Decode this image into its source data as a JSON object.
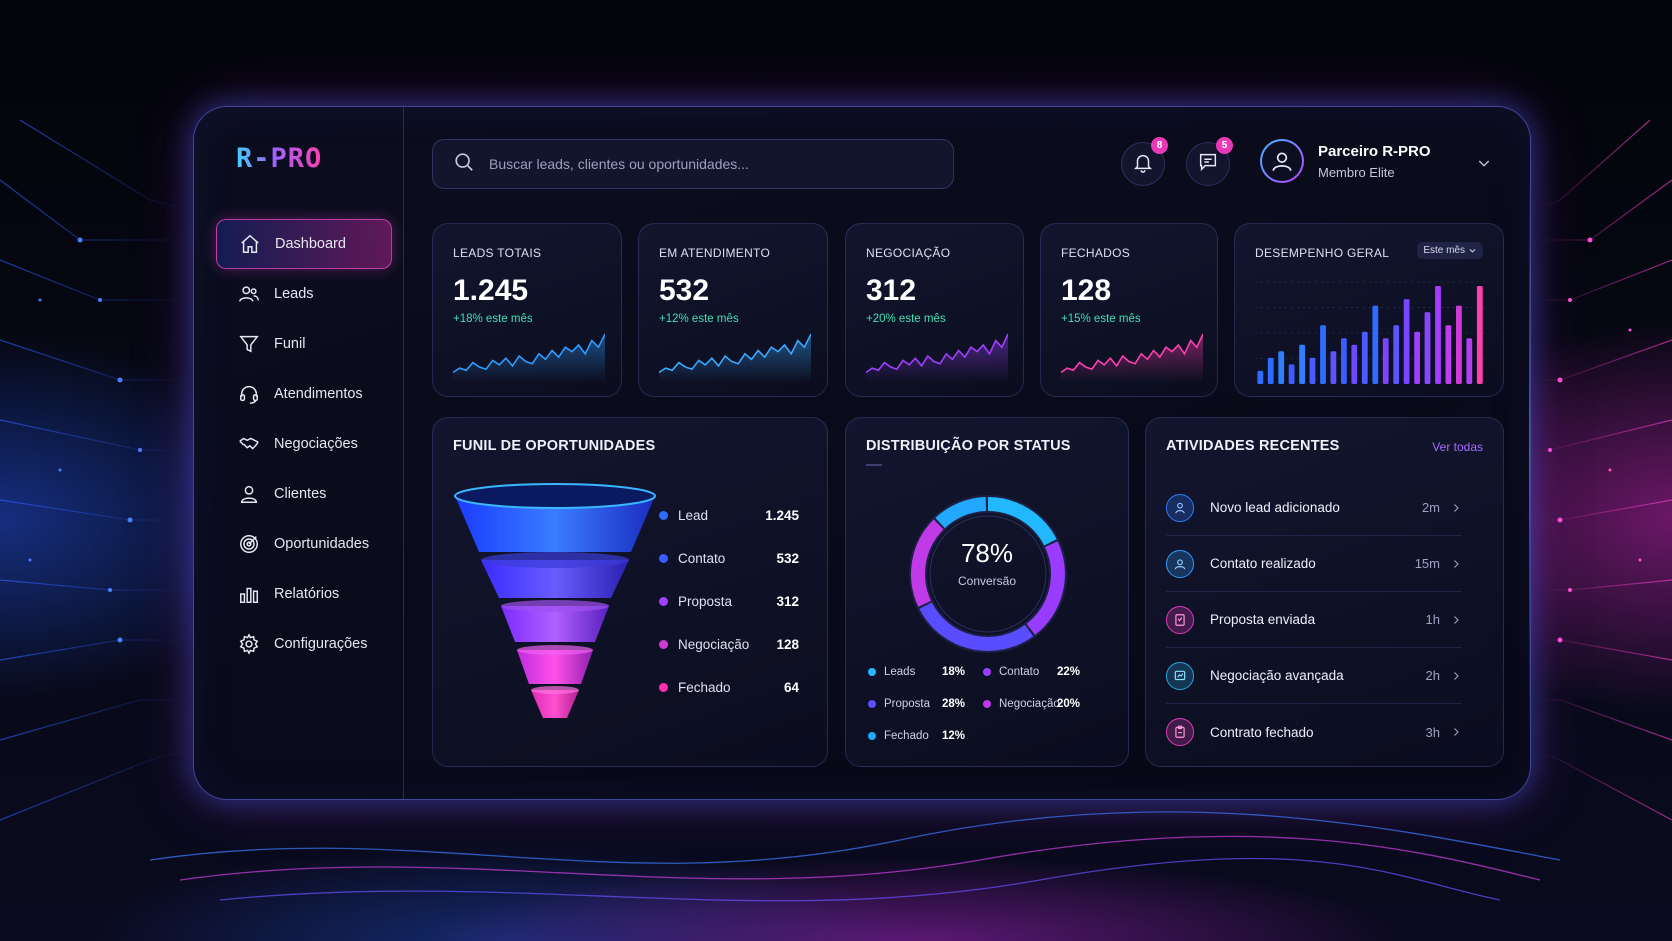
{
  "brand": {
    "logo": "R-PRO"
  },
  "sidebar": {
    "items": [
      {
        "label": "Dashboard",
        "icon": "home-icon",
        "active": true
      },
      {
        "label": "Leads",
        "icon": "users-icon"
      },
      {
        "label": "Funil",
        "icon": "funnel-icon"
      },
      {
        "label": "Atendimentos",
        "icon": "headset-icon"
      },
      {
        "label": "Negociações",
        "icon": "handshake-icon"
      },
      {
        "label": "Clientes",
        "icon": "user-icon"
      },
      {
        "label": "Oportunidades",
        "icon": "target-icon"
      },
      {
        "label": "Relatórios",
        "icon": "bar-chart-icon"
      },
      {
        "label": "Configurações",
        "icon": "gear-icon"
      }
    ]
  },
  "header": {
    "search_placeholder": "Buscar leads, clientes ou oportunidades...",
    "notifications_count": "8",
    "messages_count": "5",
    "user_name": "Parceiro R-PRO",
    "user_role": "Membro Elite"
  },
  "kpis": [
    {
      "label": "LEADS TOTAIS",
      "value": "1.245",
      "delta": "+18% este mês",
      "color": "#2e9cff"
    },
    {
      "label": "EM ATENDIMENTO",
      "value": "532",
      "delta": "+12% este mês",
      "color": "#3aa8ff"
    },
    {
      "label": "NEGOCIAÇÃO",
      "value": "312",
      "delta": "+20% este mês",
      "color": "#a040ff"
    },
    {
      "label": "FECHADOS",
      "value": "128",
      "delta": "+15% este mês",
      "color": "#ff3fb0"
    }
  ],
  "performance": {
    "title": "DESEMPENHO GERAL",
    "period": "Este mês",
    "chart_data": {
      "type": "bar",
      "values": [
        2,
        4,
        5,
        3,
        6,
        4,
        9,
        5,
        7,
        6,
        8,
        12,
        7,
        9,
        13,
        8,
        11,
        15,
        9,
        12,
        7,
        15
      ],
      "colors": [
        "#2e6cff",
        "#2e6cff",
        "#2e80ff",
        "#3b5cff",
        "#2e80ff",
        "#4a5cff",
        "#2e6cff",
        "#5a55ff",
        "#3b5cff",
        "#6a4cff",
        "#4a5cff",
        "#2e6cff",
        "#7a45ff",
        "#5a55ff",
        "#7a45ff",
        "#9a40ff",
        "#8a45ff",
        "#a23cff",
        "#c03cf0",
        "#d03ad8",
        "#b040f0",
        "#ff3fb0"
      ]
    }
  },
  "funnel": {
    "title": "FUNIL DE OPORTUNIDADES",
    "stages": [
      {
        "label": "Lead",
        "value": "1.245",
        "color": "#2e6cff"
      },
      {
        "label": "Contato",
        "value": "532",
        "color": "#3a5cff"
      },
      {
        "label": "Proposta",
        "value": "312",
        "color": "#a040ff"
      },
      {
        "label": "Negociação",
        "value": "128",
        "color": "#d03ad8"
      },
      {
        "label": "Fechado",
        "value": "64",
        "color": "#ff2fb0"
      }
    ]
  },
  "status": {
    "title": "DISTRIBUIÇÃO POR STATUS",
    "center_value": "78%",
    "center_label": "Conversão",
    "chart_data": {
      "type": "pie",
      "slices": [
        {
          "label": "Leads",
          "value": 18,
          "display": "18%",
          "color": "#22b8ff"
        },
        {
          "label": "Contato",
          "value": 22,
          "display": "22%",
          "color": "#9a3cff"
        },
        {
          "label": "Proposta",
          "value": 28,
          "display": "28%",
          "color": "#5a4cff"
        },
        {
          "label": "Negociação",
          "value": 20,
          "display": "20%",
          "color": "#c03ae8"
        },
        {
          "label": "Fechado",
          "value": 12,
          "display": "12%",
          "color": "#22a8ff"
        }
      ]
    }
  },
  "activities": {
    "title": "ATIVIDADES RECENTES",
    "view_all": "Ver todas",
    "items": [
      {
        "title": "Novo lead adicionado",
        "time": "2m",
        "color": "#2e7cff",
        "icon": "user-add-icon"
      },
      {
        "title": "Contato realizado",
        "time": "15m",
        "color": "#2e9cff",
        "icon": "contact-icon"
      },
      {
        "title": "Proposta enviada",
        "time": "1h",
        "color": "#e03ab8",
        "icon": "document-icon"
      },
      {
        "title": "Negociação avançada",
        "time": "2h",
        "color": "#22a8e0",
        "icon": "chart-icon"
      },
      {
        "title": "Contrato fechado",
        "time": "3h",
        "color": "#e03ab8",
        "icon": "clipboard-icon"
      }
    ]
  }
}
